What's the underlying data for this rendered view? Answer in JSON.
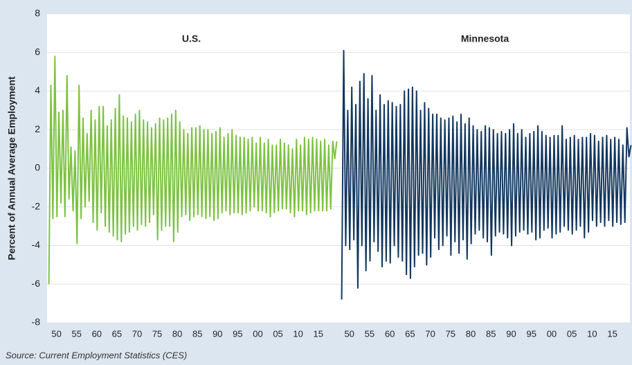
{
  "source": "Source: Current Employment Statistics (CES)",
  "chart_data": [
    {
      "type": "line",
      "title": "U.S.",
      "ylabel": "Percent of Annual Average Employment",
      "color": "#7dc242",
      "grid": true,
      "xlim": [
        1948,
        2019
      ],
      "ylim": [
        -8,
        8
      ],
      "yticks": [
        -8,
        -6,
        -4,
        -2,
        0,
        2,
        4,
        6,
        8
      ],
      "xticks": [
        {
          "value": 1950,
          "label": "50"
        },
        {
          "value": 1955,
          "label": "55"
        },
        {
          "value": 1960,
          "label": "60"
        },
        {
          "value": 1965,
          "label": "65"
        },
        {
          "value": 1970,
          "label": "70"
        },
        {
          "value": 1975,
          "label": "75"
        },
        {
          "value": 1980,
          "label": "80"
        },
        {
          "value": 1985,
          "label": "85"
        },
        {
          "value": 1990,
          "label": "90"
        },
        {
          "value": 1995,
          "label": "95"
        },
        {
          "value": 2000,
          "label": "00"
        },
        {
          "value": 2005,
          "label": "05"
        },
        {
          "value": 2010,
          "label": "10"
        },
        {
          "value": 2015,
          "label": "15"
        }
      ],
      "x": [
        1948.1,
        1948.6,
        1949.1,
        1949.6,
        1950.1,
        1950.6,
        1951.1,
        1951.6,
        1952.1,
        1952.6,
        1953.1,
        1953.6,
        1954.1,
        1954.6,
        1955.1,
        1955.6,
        1956.1,
        1956.6,
        1957.1,
        1957.6,
        1958.1,
        1958.6,
        1959.1,
        1959.6,
        1960.1,
        1960.6,
        1961.1,
        1961.6,
        1962.1,
        1962.6,
        1963.1,
        1963.6,
        1964.1,
        1964.6,
        1965.1,
        1965.6,
        1966.1,
        1966.6,
        1967.1,
        1967.6,
        1968.1,
        1968.6,
        1969.1,
        1969.6,
        1970.1,
        1970.6,
        1971.1,
        1971.6,
        1972.1,
        1972.6,
        1973.1,
        1973.6,
        1974.1,
        1974.6,
        1975.1,
        1975.6,
        1976.1,
        1976.6,
        1977.1,
        1977.6,
        1978.1,
        1978.6,
        1979.1,
        1979.6,
        1980.1,
        1980.6,
        1981.1,
        1981.6,
        1982.1,
        1982.6,
        1983.1,
        1983.6,
        1984.1,
        1984.6,
        1985.1,
        1985.6,
        1986.1,
        1986.6,
        1987.1,
        1987.6,
        1988.1,
        1988.6,
        1989.1,
        1989.6,
        1990.1,
        1990.6,
        1991.1,
        1991.6,
        1992.1,
        1992.6,
        1993.1,
        1993.6,
        1994.1,
        1994.6,
        1995.1,
        1995.6,
        1996.1,
        1996.6,
        1997.1,
        1997.6,
        1998.1,
        1998.6,
        1999.1,
        1999.6,
        2000.1,
        2000.6,
        2001.1,
        2001.6,
        2002.1,
        2002.6,
        2003.1,
        2003.6,
        2004.1,
        2004.6,
        2005.1,
        2005.6,
        2006.1,
        2006.6,
        2007.1,
        2007.6,
        2008.1,
        2008.6,
        2009.1,
        2009.6,
        2010.1,
        2010.6,
        2011.1,
        2011.6,
        2012.1,
        2012.6,
        2013.1,
        2013.6,
        2014.1,
        2014.6,
        2015.1,
        2015.6,
        2016.1,
        2016.6,
        2017.1,
        2017.6,
        2018.1,
        2018.6,
        2019.1,
        2019.6
      ],
      "values": [
        -6.0,
        4.3,
        -2.6,
        5.8,
        -2.5,
        2.9,
        -1.8,
        3.0,
        -2.5,
        4.8,
        -1.6,
        1.1,
        -2.2,
        0.9,
        -3.9,
        4.3,
        -2.6,
        2.6,
        -2.0,
        1.8,
        -1.7,
        3.0,
        -2.8,
        2.5,
        -3.2,
        3.2,
        -2.3,
        3.2,
        -3.0,
        2.2,
        -3.3,
        2.5,
        -3.5,
        3.1,
        -3.7,
        3.8,
        -3.8,
        2.7,
        -3.4,
        2.6,
        -3.3,
        2.4,
        -3.0,
        2.8,
        -3.2,
        3.0,
        -2.9,
        2.5,
        -3.0,
        2.4,
        -2.8,
        2.1,
        -2.4,
        2.3,
        -3.7,
        2.6,
        -3.2,
        2.5,
        -3.0,
        2.6,
        -3.0,
        2.8,
        -3.8,
        3.0,
        -3.3,
        2.4,
        -2.5,
        2.0,
        -2.4,
        1.8,
        -2.7,
        2.1,
        -2.5,
        2.1,
        -2.4,
        2.2,
        -2.5,
        2.0,
        -2.6,
        2.0,
        -2.5,
        1.8,
        -2.7,
        1.9,
        -2.6,
        2.1,
        -2.3,
        1.6,
        -2.2,
        1.8,
        -2.4,
        2.0,
        -2.3,
        1.7,
        -2.3,
        1.6,
        -2.4,
        1.6,
        -2.3,
        1.5,
        -2.2,
        1.6,
        -2.0,
        1.3,
        -2.2,
        1.6,
        -2.2,
        1.3,
        -2.3,
        1.5,
        -2.5,
        1.2,
        -2.3,
        1.2,
        -2.2,
        1.5,
        -2.1,
        1.3,
        -2.1,
        1.2,
        -2.3,
        1.0,
        -2.5,
        1.5,
        -2.2,
        1.2,
        -2.2,
        1.6,
        -2.4,
        1.5,
        -2.3,
        1.6,
        -2.2,
        1.5,
        -2.2,
        1.4,
        -2.2,
        1.5,
        -2.2,
        1.2,
        -2.1,
        1.4,
        0.5,
        1.4
      ]
    },
    {
      "type": "line",
      "title": "Minnesota",
      "color": "#13375e",
      "grid": true,
      "xlim": [
        1948,
        2019
      ],
      "ylim": [
        -8,
        8
      ],
      "yticks": [
        -8,
        -6,
        -4,
        -2,
        0,
        2,
        4,
        6,
        8
      ],
      "xticks": [
        {
          "value": 1950,
          "label": "50"
        },
        {
          "value": 1955,
          "label": "55"
        },
        {
          "value": 1960,
          "label": "60"
        },
        {
          "value": 1965,
          "label": "65"
        },
        {
          "value": 1970,
          "label": "70"
        },
        {
          "value": 1975,
          "label": "75"
        },
        {
          "value": 1980,
          "label": "80"
        },
        {
          "value": 1985,
          "label": "85"
        },
        {
          "value": 1990,
          "label": "90"
        },
        {
          "value": 1995,
          "label": "95"
        },
        {
          "value": 2000,
          "label": "00"
        },
        {
          "value": 2005,
          "label": "05"
        },
        {
          "value": 2010,
          "label": "10"
        },
        {
          "value": 2015,
          "label": "15"
        }
      ],
      "x": [
        1948.1,
        1948.6,
        1949.1,
        1949.6,
        1950.1,
        1950.6,
        1951.1,
        1951.6,
        1952.1,
        1952.6,
        1953.1,
        1953.6,
        1954.1,
        1954.6,
        1955.1,
        1955.6,
        1956.1,
        1956.6,
        1957.1,
        1957.6,
        1958.1,
        1958.6,
        1959.1,
        1959.6,
        1960.1,
        1960.6,
        1961.1,
        1961.6,
        1962.1,
        1962.6,
        1963.1,
        1963.6,
        1964.1,
        1964.6,
        1965.1,
        1965.6,
        1966.1,
        1966.6,
        1967.1,
        1967.6,
        1968.1,
        1968.6,
        1969.1,
        1969.6,
        1970.1,
        1970.6,
        1971.1,
        1971.6,
        1972.1,
        1972.6,
        1973.1,
        1973.6,
        1974.1,
        1974.6,
        1975.1,
        1975.6,
        1976.1,
        1976.6,
        1977.1,
        1977.6,
        1978.1,
        1978.6,
        1979.1,
        1979.6,
        1980.1,
        1980.6,
        1981.1,
        1981.6,
        1982.1,
        1982.6,
        1983.1,
        1983.6,
        1984.1,
        1984.6,
        1985.1,
        1985.6,
        1986.1,
        1986.6,
        1987.1,
        1987.6,
        1988.1,
        1988.6,
        1989.1,
        1989.6,
        1990.1,
        1990.6,
        1991.1,
        1991.6,
        1992.1,
        1992.6,
        1993.1,
        1993.6,
        1994.1,
        1994.6,
        1995.1,
        1995.6,
        1996.1,
        1996.6,
        1997.1,
        1997.6,
        1998.1,
        1998.6,
        1999.1,
        1999.6,
        2000.1,
        2000.6,
        2001.1,
        2001.6,
        2002.1,
        2002.6,
        2003.1,
        2003.6,
        2004.1,
        2004.6,
        2005.1,
        2005.6,
        2006.1,
        2006.6,
        2007.1,
        2007.6,
        2008.1,
        2008.6,
        2009.1,
        2009.6,
        2010.1,
        2010.6,
        2011.1,
        2011.6,
        2012.1,
        2012.6,
        2013.1,
        2013.6,
        2014.1,
        2014.6,
        2015.1,
        2015.6,
        2016.1,
        2016.6,
        2017.1,
        2017.6,
        2018.1,
        2018.6,
        2019.1,
        2019.6
      ],
      "values": [
        -6.8,
        6.1,
        -4.0,
        3.0,
        -4.2,
        4.2,
        -3.7,
        3.3,
        -6.2,
        4.5,
        -4.0,
        4.9,
        -5.3,
        3.6,
        -4.8,
        4.8,
        -3.8,
        3.0,
        -4.3,
        3.8,
        -5.1,
        3.3,
        -4.8,
        3.5,
        -4.9,
        3.4,
        -4.0,
        3.2,
        -4.6,
        3.3,
        -4.8,
        4.0,
        -5.5,
        4.1,
        -5.7,
        4.2,
        -5.1,
        4.0,
        -4.5,
        3.0,
        -4.4,
        3.4,
        -5.0,
        3.1,
        -4.6,
        2.8,
        -3.6,
        2.8,
        -4.2,
        2.6,
        -4.0,
        2.5,
        -3.5,
        2.6,
        -4.5,
        2.7,
        -3.8,
        2.4,
        -4.4,
        2.8,
        -3.7,
        2.3,
        -4.7,
        2.6,
        -3.9,
        2.2,
        -3.4,
        2.0,
        -3.2,
        1.9,
        -3.6,
        2.2,
        -3.8,
        2.1,
        -4.5,
        2.0,
        -3.5,
        1.8,
        -3.3,
        1.9,
        -3.4,
        1.8,
        -3.6,
        2.0,
        -4.0,
        2.3,
        -3.5,
        1.8,
        -3.3,
        2.0,
        -3.2,
        1.6,
        -3.4,
        1.8,
        -3.3,
        1.9,
        -3.7,
        2.2,
        -3.6,
        1.9,
        -3.2,
        1.7,
        -3.1,
        1.6,
        -3.6,
        1.7,
        -3.4,
        1.7,
        -3.3,
        2.2,
        -3.0,
        1.5,
        -3.2,
        1.6,
        -3.4,
        1.7,
        -3.2,
        1.5,
        -3.0,
        1.6,
        -3.6,
        1.6,
        -3.3,
        1.8,
        -2.7,
        1.7,
        -3.0,
        1.4,
        -2.8,
        1.6,
        -3.0,
        1.7,
        -2.7,
        1.5,
        -3.0,
        1.6,
        -2.8,
        1.5,
        -2.9,
        1.2,
        -2.8,
        2.1,
        0.6,
        1.2
      ]
    }
  ]
}
